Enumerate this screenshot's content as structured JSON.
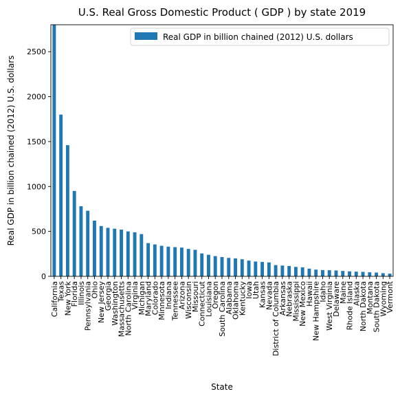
{
  "chart_data": {
    "type": "bar",
    "title": "U.S. Real Gross Domestic Product ( GDP ) by state 2019",
    "xlabel": "State",
    "ylabel": "Real GDP in billion chained (2012) U.S. dollars",
    "legend": "top-right",
    "grid": false,
    "ylim": [
      0,
      2800
    ],
    "yticks": [
      0,
      500,
      1000,
      1500,
      2000,
      2500
    ],
    "series": [
      {
        "name": "Real GDP in billion chained (2012) U.S. dollars",
        "color": "#1f77b4"
      }
    ],
    "categories": [
      "California",
      "Texas",
      "New York",
      "Florida",
      "Illinois",
      "Pennsylvania",
      "Ohio",
      "New Jersey",
      "Georgia",
      "Washington",
      "Massachusetts",
      "North Carolina",
      "Virginia",
      "Michigan",
      "Maryland",
      "Colorado",
      "Minnesota",
      "Indiana",
      "Tennessee",
      "Arizona",
      "Wisconsin",
      "Missouri",
      "Connecticut",
      "Louisiana",
      "Oregon",
      "South Carolina",
      "Alabama",
      "Oklahoma",
      "Kentucky",
      "Iowa",
      "Utah",
      "Kansas",
      "Nevada",
      "District of Columbia",
      "Arkansas",
      "Nebraska",
      "Mississippi",
      "New Mexico",
      "Hawaii",
      "New Hampshire",
      "Idaho",
      "West Virginia",
      "Delaware",
      "Maine",
      "Rhode Island",
      "Alaska",
      "North Dakota",
      "Montana",
      "South Dakota",
      "Wyoming",
      "Vermont"
    ],
    "values": [
      2800,
      1800,
      1460,
      950,
      780,
      730,
      620,
      560,
      540,
      530,
      520,
      500,
      490,
      470,
      370,
      355,
      340,
      330,
      325,
      320,
      305,
      295,
      255,
      240,
      225,
      215,
      205,
      200,
      190,
      175,
      165,
      160,
      155,
      125,
      120,
      115,
      105,
      100,
      85,
      75,
      70,
      68,
      65,
      60,
      55,
      52,
      50,
      45,
      42,
      35,
      30
    ]
  }
}
